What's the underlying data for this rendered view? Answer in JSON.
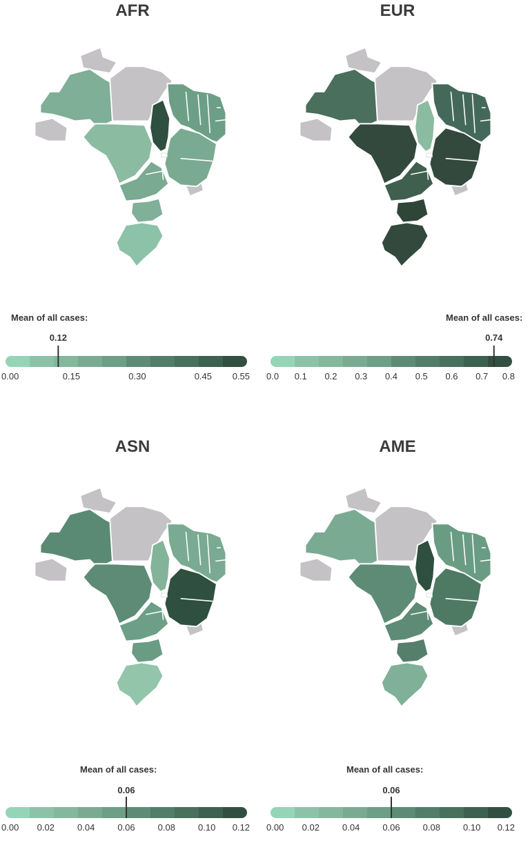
{
  "panels": [
    {
      "title": "AFR",
      "mean_label": "Mean of all cases:",
      "mean_value": "0.12",
      "mean": 0.12,
      "scale_min": 0.0,
      "scale_max": 0.55,
      "ticks": [
        {
          "label": "0.00",
          "value": 0.0
        },
        {
          "label": "0.15",
          "value": 0.15
        },
        {
          "label": "0.30",
          "value": 0.3
        },
        {
          "label": "0.45",
          "value": 0.45
        },
        {
          "label": "0.55",
          "value": 0.55
        }
      ],
      "regions": {
        "NW": "#7faf96",
        "N": "#c4c2c5",
        "NE": "#6c9f86",
        "CW": "#8bbba1",
        "C": "#2f4f40",
        "E": "#7aaa91",
        "SE": "#7aaa91",
        "S": "#80b097",
        "SS": "#8cc3a8"
      }
    },
    {
      "title": "EUR",
      "mean_label": "Mean of all cases:",
      "mean_value": "0.74",
      "mean": 0.74,
      "scale_min": 0.0,
      "scale_max": 0.8,
      "ticks": [
        {
          "label": "0.0",
          "value": 0.0
        },
        {
          "label": "0.1",
          "value": 0.1
        },
        {
          "label": "0.2",
          "value": 0.2
        },
        {
          "label": "0.3",
          "value": 0.3
        },
        {
          "label": "0.4",
          "value": 0.4
        },
        {
          "label": "0.5",
          "value": 0.5
        },
        {
          "label": "0.6",
          "value": 0.6
        },
        {
          "label": "0.7",
          "value": 0.7
        },
        {
          "label": "0.8",
          "value": 0.8
        }
      ],
      "regions": {
        "NW": "#4a6f5c",
        "N": "#c4c2c5",
        "NE": "#44695a",
        "CW": "#33493e",
        "C": "#8bbba1",
        "E": "#33493e",
        "SE": "#3f5f4f",
        "S": "#2f4538",
        "SS": "#34493e"
      }
    },
    {
      "title": "ASN",
      "mean_label": "Mean of all cases:",
      "mean_value": "0.06",
      "mean": 0.06,
      "scale_min": 0.0,
      "scale_max": 0.12,
      "ticks": [
        {
          "label": "0.00",
          "value": 0.0
        },
        {
          "label": "0.02",
          "value": 0.02
        },
        {
          "label": "0.04",
          "value": 0.04
        },
        {
          "label": "0.06",
          "value": 0.06
        },
        {
          "label": "0.08",
          "value": 0.08
        },
        {
          "label": "0.10",
          "value": 0.1
        },
        {
          "label": "0.12",
          "value": 0.12
        }
      ],
      "regions": {
        "NW": "#5a8a73",
        "N": "#c4c2c5",
        "NE": "#7aaa91",
        "CW": "#5e8b75",
        "C": "#83b49a",
        "E": "#2f4f40",
        "SE": "#6c9f86",
        "S": "#6a9c84",
        "SS": "#92c5aa"
      }
    },
    {
      "title": "AME",
      "mean_label": "Mean of all cases:",
      "mean_value": "0.06",
      "mean": 0.06,
      "scale_min": 0.0,
      "scale_max": 0.12,
      "ticks": [
        {
          "label": "0.00",
          "value": 0.0
        },
        {
          "label": "0.02",
          "value": 0.02
        },
        {
          "label": "0.04",
          "value": 0.04
        },
        {
          "label": "0.06",
          "value": 0.06
        },
        {
          "label": "0.08",
          "value": 0.08
        },
        {
          "label": "0.10",
          "value": 0.1
        },
        {
          "label": "0.12",
          "value": 0.12
        }
      ],
      "regions": {
        "NW": "#7aab92",
        "N": "#c4c2c5",
        "NE": "#6a9c84",
        "CW": "#5e8b75",
        "C": "#2f4f40",
        "E": "#4e7a64",
        "SE": "#5e8b75",
        "S": "#557f6a",
        "SS": "#80b097"
      }
    }
  ],
  "colors": {
    "ramp": [
      "#96d4b7",
      "#8cc3a8",
      "#84b89d",
      "#7aab92",
      "#6c9f86",
      "#5e8b75",
      "#527d68",
      "#48705d",
      "#3d6150",
      "#334f42"
    ],
    "no_data": "#c4c2c5"
  }
}
